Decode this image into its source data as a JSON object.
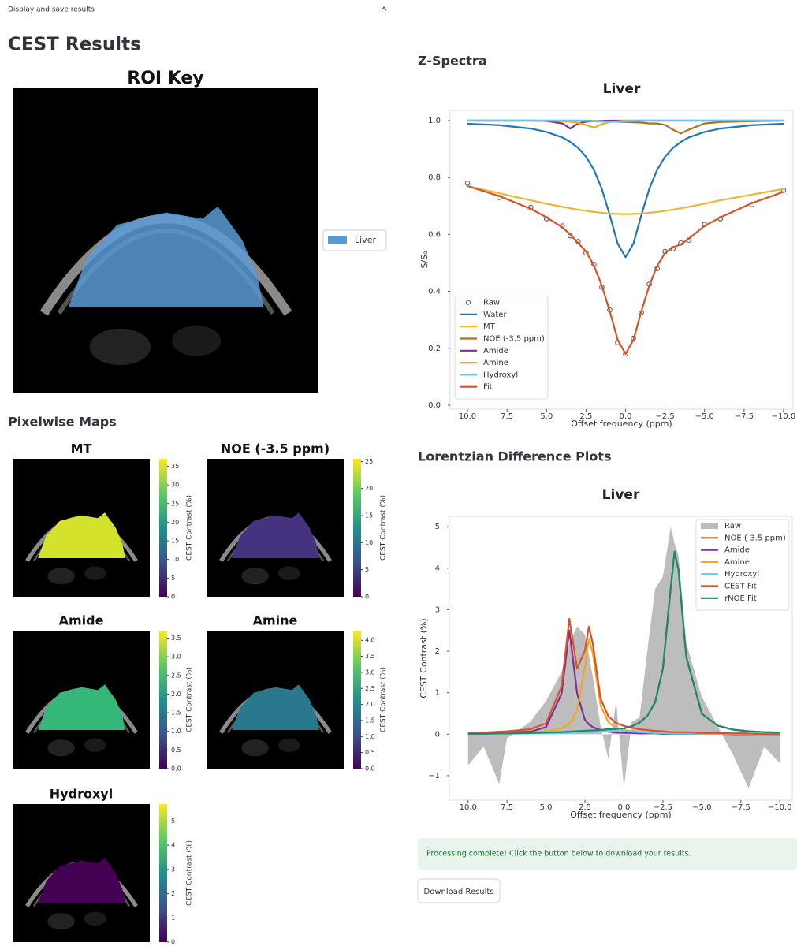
{
  "expander": "Display and save results",
  "title": "CEST Results",
  "roi_key": {
    "title": "ROI Key",
    "legend": "Liver",
    "color": "#5b9bd5"
  },
  "pixelwise_heading": "Pixelwise Maps",
  "maps": [
    {
      "title": "MT",
      "colorbar_label": "CEST Contrast (%)",
      "color": "#d4e22b",
      "lim": [
        0,
        37
      ],
      "ticks": [
        0,
        5,
        10,
        15,
        20,
        25,
        30,
        35
      ]
    },
    {
      "title": "NOE (-3.5 ppm)",
      "colorbar_label": "CEST Contrast (%)",
      "color": "#45337f",
      "lim": [
        0,
        25.5
      ],
      "ticks": [
        0,
        5,
        10,
        15,
        20,
        25
      ]
    },
    {
      "title": "Amide",
      "colorbar_label": "CEST Contrast (%)",
      "color": "#35b779",
      "lim": [
        0,
        3.7
      ],
      "ticks": [
        {
          "value": 0,
          "label": "0.0"
        },
        0.5,
        {
          "value": 1,
          "label": "1.0"
        },
        1.5,
        {
          "value": 2,
          "label": "2.0"
        },
        2.5,
        {
          "value": 3,
          "label": "3.0"
        },
        3.5
      ]
    },
    {
      "title": "Amine",
      "colorbar_label": "CEST Contrast (%)",
      "color": "#2a788e",
      "lim": [
        0,
        4.3
      ],
      "ticks": [
        {
          "value": 0,
          "label": "0.0"
        },
        0.5,
        {
          "value": 1,
          "label": "1.0"
        },
        1.5,
        {
          "value": 2,
          "label": "2.0"
        },
        2.5,
        {
          "value": 3,
          "label": "3.0"
        },
        3.5,
        {
          "value": 4,
          "label": "4.0"
        }
      ]
    },
    {
      "title": "Hydroxyl",
      "colorbar_label": "CEST Contrast (%)",
      "color": "#440154",
      "lim": [
        0,
        5.7
      ],
      "ticks": [
        0,
        1,
        2,
        3,
        4,
        5
      ]
    }
  ],
  "zspectra_heading": "Z-Spectra",
  "lorentz_heading": "Lorentzian Difference Plots",
  "chart_data": [
    {
      "type": "line",
      "title": "Liver",
      "xlabel": "Offset frequency (ppm)",
      "ylabel": "S/S₀",
      "legend": "lower left",
      "xlim": [
        11.1,
        -10.6
      ],
      "ylim": [
        -0.014,
        1.036
      ],
      "xticks": [
        {
          "value": 10,
          "label": "10.0"
        },
        7.5,
        {
          "value": 5,
          "label": "5.0"
        },
        2.5,
        {
          "value": 0,
          "label": "0.0"
        },
        {
          "value": -2.5,
          "label": "−2.5"
        },
        {
          "value": -5,
          "label": "−5.0"
        },
        {
          "value": -7.5,
          "label": "−7.5"
        },
        {
          "value": -10,
          "label": "−10.0"
        }
      ],
      "yticks": [
        {
          "value": 0,
          "label": "0.0"
        },
        0.2,
        0.4,
        0.6,
        0.8,
        {
          "value": 1,
          "label": "1.0"
        }
      ],
      "x": [
        10,
        8,
        6,
        5,
        4,
        3.5,
        3,
        2.5,
        2,
        1.5,
        1,
        0.5,
        0,
        -0.5,
        -1,
        -1.5,
        -2,
        -2.5,
        -3,
        -3.5,
        -4,
        -5,
        -6,
        -8,
        -10
      ],
      "series": [
        {
          "name": "Raw",
          "type": "scatter",
          "color": "#555555",
          "values": [
            0.78,
            0.73,
            0.695,
            0.655,
            0.63,
            0.595,
            0.575,
            0.535,
            0.495,
            0.415,
            0.335,
            0.22,
            0.18,
            0.235,
            0.325,
            0.425,
            0.48,
            0.54,
            0.55,
            0.57,
            0.58,
            0.635,
            0.655,
            0.705,
            0.755
          ]
        },
        {
          "name": "Water",
          "color": "#1f77b4",
          "values": [
            0.989,
            0.984,
            0.972,
            0.96,
            0.941,
            0.925,
            0.904,
            0.873,
            0.827,
            0.76,
            0.668,
            0.568,
            0.52,
            0.568,
            0.668,
            0.76,
            0.827,
            0.873,
            0.904,
            0.925,
            0.941,
            0.96,
            0.972,
            0.984,
            0.989
          ]
        },
        {
          "name": "MT",
          "color": "#e8b830",
          "values": [
            0.77,
            0.745,
            0.72,
            0.708,
            0.697,
            0.692,
            0.687,
            0.683,
            0.679,
            0.676,
            0.673,
            0.672,
            0.671,
            0.672,
            0.673,
            0.676,
            0.679,
            0.683,
            0.687,
            0.692,
            0.697,
            0.708,
            0.72,
            0.74,
            0.76
          ]
        },
        {
          "name": "NOE (-3.5 ppm)",
          "color": "#a6761d",
          "values": [
            1,
            1,
            1,
            1,
            1,
            1,
            1,
            1,
            0.999,
            0.998,
            0.997,
            0.996,
            0.995,
            0.994,
            0.993,
            0.99,
            0.99,
            0.985,
            0.968,
            0.955,
            0.968,
            0.99,
            0.995,
            0.998,
            1
          ]
        },
        {
          "name": "Amide",
          "color": "#7b3294",
          "values": [
            1,
            1,
            1,
            0.999,
            0.99,
            0.972,
            0.99,
            0.996,
            0.998,
            0.999,
            1,
            1,
            1,
            1,
            1,
            1,
            1,
            1,
            1,
            1,
            1,
            1,
            1,
            1,
            1
          ]
        },
        {
          "name": "Amine",
          "color": "#f5a623",
          "values": [
            1,
            1,
            1,
            1,
            0.998,
            0.996,
            0.992,
            0.985,
            0.975,
            0.988,
            0.995,
            0.998,
            1,
            1,
            1,
            1,
            1,
            1,
            1,
            1,
            1,
            1,
            1,
            1,
            1
          ]
        },
        {
          "name": "Hydroxyl",
          "color": "#6ec6f0",
          "values": [
            1,
            1,
            1,
            1,
            1,
            1,
            1,
            0.999,
            0.998,
            0.997,
            0.996,
            0.997,
            0.998,
            0.999,
            1,
            1,
            1,
            1,
            1,
            1,
            1,
            1,
            1,
            1,
            1
          ]
        },
        {
          "name": "Fit",
          "color": "#d9532a",
          "values": [
            0.77,
            0.735,
            0.69,
            0.66,
            0.625,
            0.6,
            0.57,
            0.54,
            0.49,
            0.42,
            0.33,
            0.23,
            0.18,
            0.23,
            0.33,
            0.42,
            0.49,
            0.535,
            0.555,
            0.565,
            0.585,
            0.63,
            0.66,
            0.71,
            0.75
          ]
        }
      ]
    },
    {
      "type": "line",
      "title": "Liver",
      "xlabel": "Offset frequency (ppm)",
      "ylabel": "CEST Contrast (%)",
      "legend": "upper right",
      "xlim": [
        11.2,
        -10.8
      ],
      "ylim": [
        -1.59,
        5.25
      ],
      "xticks": [
        {
          "value": 10,
          "label": "10.0"
        },
        7.5,
        {
          "value": 5,
          "label": "5.0"
        },
        2.5,
        {
          "value": 0,
          "label": "0.0"
        },
        {
          "value": -2.5,
          "label": "−2.5"
        },
        {
          "value": -5,
          "label": "−5.0"
        },
        {
          "value": -7.5,
          "label": "−7.5"
        },
        {
          "value": -10,
          "label": "−10.0"
        }
      ],
      "yticks": [
        {
          "value": -1,
          "label": "−1"
        },
        0,
        1,
        2,
        3,
        4,
        5
      ],
      "x": [
        10,
        9,
        8,
        7.5,
        6,
        5,
        4,
        3.5,
        3,
        2.5,
        2.25,
        2,
        1.5,
        1,
        0.5,
        0,
        -0.5,
        -1,
        -1.5,
        -2,
        -2.5,
        -3,
        -3.25,
        -3.5,
        -4,
        -5,
        -6,
        -7,
        -8,
        -9,
        -10
      ],
      "series": [
        {
          "name": "Raw",
          "type": "area",
          "color": "#bdbdbd",
          "values": [
            -0.75,
            -0.3,
            -1.2,
            -0.1,
            0.3,
            0.8,
            1.5,
            2.2,
            2.6,
            2.4,
            1.9,
            1.4,
            0.2,
            -0.6,
            0.8,
            -1.3,
            0.3,
            0.4,
            2.0,
            3.5,
            3.8,
            5.0,
            4.6,
            4.3,
            2.2,
            0.9,
            0.2,
            -0.5,
            -1.3,
            -0.3,
            -0.7
          ]
        },
        {
          "name": "NOE (-3.5 ppm)",
          "color": "#a6761d",
          "values": [
            0.01,
            0.01,
            0.02,
            0.02,
            0.03,
            0.04,
            0.05,
            0.06,
            0.07,
            0.08,
            0.09,
            0.09,
            0.1,
            0.12,
            0.13,
            0.14,
            0.19,
            0.28,
            0.44,
            0.77,
            1.58,
            3.52,
            4.4,
            3.96,
            1.86,
            0.49,
            0.21,
            0.11,
            0.07,
            0.05,
            0.04
          ]
        },
        {
          "name": "Amide",
          "color": "#7b3294",
          "values": [
            0.01,
            0.02,
            0.03,
            0.04,
            0.06,
            0.17,
            0.98,
            2.5,
            0.98,
            0.34,
            0.24,
            0.17,
            0.1,
            0.06,
            0.04,
            0.03,
            0.03,
            0.02,
            0.02,
            0.02,
            0.01,
            0.01,
            0.01,
            0.01,
            0.01,
            0.01,
            0.01,
            0,
            0,
            0,
            0
          ]
        },
        {
          "name": "Amine",
          "color": "#f5a623",
          "values": [
            0.01,
            0.01,
            0.02,
            0.02,
            0.04,
            0.07,
            0.14,
            0.25,
            0.56,
            1.63,
            2.3,
            1.96,
            0.69,
            0.29,
            0.15,
            0.1,
            0.07,
            0.05,
            0.04,
            0.03,
            0.03,
            0.02,
            0.02,
            0.02,
            0.02,
            0.01,
            0.01,
            0.01,
            0.01,
            0,
            0
          ]
        },
        {
          "name": "Hydroxyl",
          "color": "#6ec6f0",
          "values": [
            0.01,
            0.01,
            0.01,
            0.01,
            0.02,
            0.02,
            0.03,
            0.03,
            0.04,
            0.05,
            0.05,
            0.06,
            0.07,
            0.08,
            0.08,
            0.07,
            0.06,
            0.05,
            0.04,
            0.03,
            0.03,
            0.02,
            0.02,
            0.02,
            0.02,
            0.01,
            0.01,
            0.01,
            0.01,
            0,
            0
          ]
        },
        {
          "name": "CEST Fit",
          "color": "#d9532a",
          "values": [
            0.03,
            0.04,
            0.06,
            0.07,
            0.12,
            0.26,
            1.15,
            2.78,
            1.58,
            2.02,
            2.59,
            2.19,
            0.86,
            0.43,
            0.27,
            0.2,
            0.16,
            0.12,
            0.1,
            0.08,
            0.07,
            0.05,
            0.05,
            0.05,
            0.05,
            0.03,
            0.03,
            0.02,
            0.02,
            0,
            0
          ]
        },
        {
          "name": "rNOE Fit",
          "color": "#1a8a6a",
          "values": [
            0.01,
            0.01,
            0.02,
            0.02,
            0.03,
            0.04,
            0.05,
            0.06,
            0.07,
            0.08,
            0.09,
            0.09,
            0.1,
            0.12,
            0.13,
            0.14,
            0.19,
            0.28,
            0.44,
            0.77,
            1.58,
            3.52,
            4.4,
            3.96,
            1.86,
            0.49,
            0.21,
            0.11,
            0.07,
            0.05,
            0.04
          ]
        }
      ]
    }
  ],
  "status": "Processing complete! Click the button below to download your results.",
  "button": "Download Results"
}
